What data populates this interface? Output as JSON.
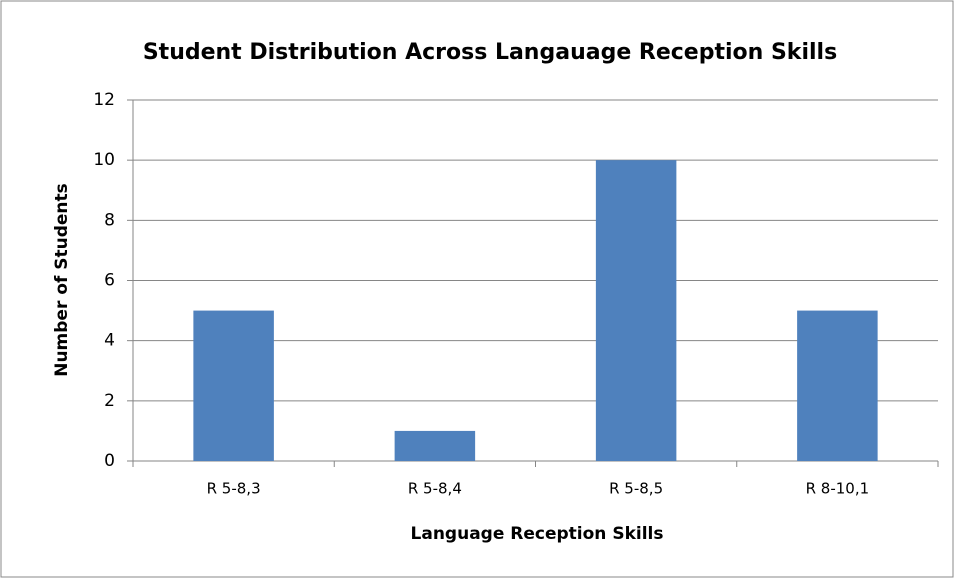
{
  "chart_data": {
    "type": "bar",
    "title": "Student Distribution Across Langauage Reception Skills",
    "xlabel": "Language Reception Skills",
    "ylabel": "Number of Students",
    "categories": [
      "R 5-8,3",
      "R 5-8,4",
      "R 5-8,5",
      "R 8-10,1"
    ],
    "values": [
      5,
      1,
      10,
      5
    ],
    "color": "#4f81bd",
    "ylim": [
      0,
      12
    ],
    "yticks": [
      0,
      2,
      4,
      6,
      8,
      10,
      12
    ],
    "grid": true
  }
}
